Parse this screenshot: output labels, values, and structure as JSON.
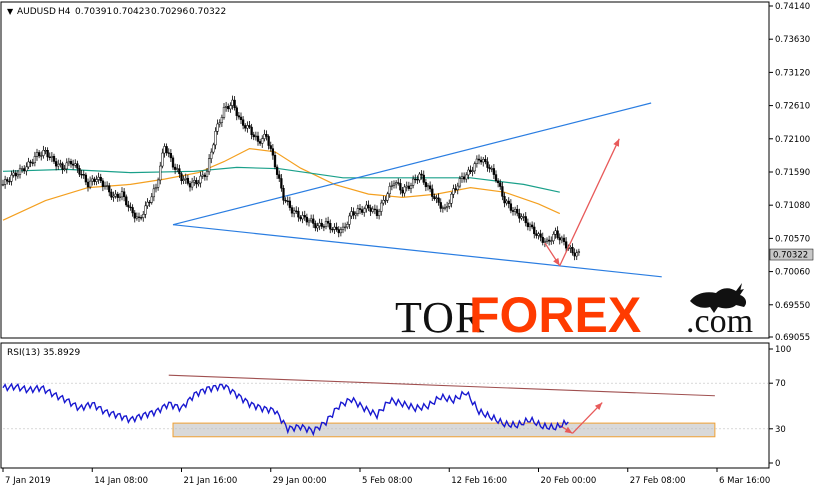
{
  "chart_data": [
    {
      "type": "candlestick",
      "symbol": "AUDUSD",
      "timeframe": "H4",
      "ohlc_readout": [
        "0.70391",
        "0.70423",
        "0.70296",
        "0.70322"
      ],
      "last_price_label": "0.70322",
      "y_ticks": [
        "0.74140",
        "0.73630",
        "0.73120",
        "0.72610",
        "0.72100",
        "0.71590",
        "0.71080",
        "0.70570",
        "0.70060",
        "0.69550",
        "0.69055"
      ],
      "ylim": [
        0.69055,
        0.7414
      ],
      "x_ticks": [
        "7 Jan 2019",
        "14 Jan 08:00",
        "21 Jan 16:00",
        "29 Jan 00:00",
        "5 Feb 08:00",
        "12 Feb 16:00",
        "20 Feb 00:00",
        "27 Feb 08:00",
        "6 Mar 16:00"
      ],
      "close_series": [
        [
          0,
          0.714
        ],
        [
          4,
          0.7152
        ],
        [
          8,
          0.716
        ],
        [
          12,
          0.717
        ],
        [
          16,
          0.7185
        ],
        [
          20,
          0.719
        ],
        [
          24,
          0.7175
        ],
        [
          28,
          0.7165
        ],
        [
          32,
          0.7175
        ],
        [
          36,
          0.716
        ],
        [
          40,
          0.714
        ],
        [
          44,
          0.715
        ],
        [
          48,
          0.7138
        ],
        [
          52,
          0.712
        ],
        [
          56,
          0.7125
        ],
        [
          60,
          0.71
        ],
        [
          64,
          0.7085
        ],
        [
          68,
          0.711
        ],
        [
          72,
          0.7135
        ],
        [
          76,
          0.72
        ],
        [
          80,
          0.717
        ],
        [
          84,
          0.715
        ],
        [
          88,
          0.714
        ],
        [
          92,
          0.7145
        ],
        [
          96,
          0.716
        ],
        [
          100,
          0.722
        ],
        [
          104,
          0.7255
        ],
        [
          108,
          0.7265
        ],
        [
          112,
          0.7235
        ],
        [
          116,
          0.7225
        ],
        [
          120,
          0.7205
        ],
        [
          124,
          0.7215
        ],
        [
          128,
          0.717
        ],
        [
          132,
          0.712
        ],
        [
          136,
          0.71
        ],
        [
          140,
          0.709
        ],
        [
          144,
          0.7085
        ],
        [
          148,
          0.7075
        ],
        [
          152,
          0.708
        ],
        [
          156,
          0.707
        ],
        [
          160,
          0.707
        ],
        [
          164,
          0.7095
        ],
        [
          168,
          0.71
        ],
        [
          172,
          0.7105
        ],
        [
          176,
          0.7095
        ],
        [
          180,
          0.712
        ],
        [
          184,
          0.7145
        ],
        [
          188,
          0.713
        ],
        [
          192,
          0.714
        ],
        [
          196,
          0.7155
        ],
        [
          200,
          0.7135
        ],
        [
          204,
          0.7115
        ],
        [
          208,
          0.71
        ],
        [
          212,
          0.713
        ],
        [
          216,
          0.715
        ],
        [
          220,
          0.716
        ],
        [
          224,
          0.718
        ],
        [
          228,
          0.717
        ],
        [
          232,
          0.715
        ],
        [
          236,
          0.7115
        ],
        [
          240,
          0.71
        ],
        [
          244,
          0.709
        ],
        [
          248,
          0.7075
        ],
        [
          252,
          0.706
        ],
        [
          256,
          0.705
        ],
        [
          260,
          0.7065
        ],
        [
          264,
          0.705
        ],
        [
          268,
          0.7035
        ],
        [
          272,
          0.7032
        ]
      ],
      "moving_averages": [
        {
          "color": "#f4a020",
          "values": [
            [
              0,
              0.7085
            ],
            [
              20,
              0.7115
            ],
            [
              40,
              0.7135
            ],
            [
              60,
              0.714
            ],
            [
              76,
              0.7148
            ],
            [
              92,
              0.7158
            ],
            [
              104,
              0.7175
            ],
            [
              116,
              0.7195
            ],
            [
              128,
              0.719
            ],
            [
              140,
              0.7165
            ],
            [
              156,
              0.714
            ],
            [
              172,
              0.7125
            ],
            [
              188,
              0.712
            ],
            [
              204,
              0.7125
            ],
            [
              220,
              0.7135
            ],
            [
              236,
              0.7128
            ],
            [
              252,
              0.711
            ],
            [
              262,
              0.7095
            ]
          ]
        },
        {
          "color": "#1aa08a",
          "values": [
            [
              0,
              0.716
            ],
            [
              30,
              0.7163
            ],
            [
              60,
              0.7158
            ],
            [
              90,
              0.716
            ],
            [
              110,
              0.7166
            ],
            [
              130,
              0.7164
            ],
            [
              160,
              0.715
            ],
            [
              190,
              0.715
            ],
            [
              220,
              0.715
            ],
            [
              245,
              0.714
            ],
            [
              262,
              0.7128
            ]
          ]
        }
      ],
      "trendlines": [
        {
          "color": "#2a7de1",
          "from": [
            80,
            0.7078
          ],
          "to": [
            305,
            0.7265
          ]
        },
        {
          "color": "#2a7de1",
          "from": [
            80,
            0.7078
          ],
          "to": [
            310,
            0.6998
          ]
        }
      ],
      "forecast_arrows": [
        {
          "color": "#e85a5a",
          "from": [
            255,
            0.705
          ],
          "to": [
            262,
            0.7015
          ]
        },
        {
          "color": "#e85a5a",
          "from": [
            262,
            0.7015
          ],
          "to": [
            290,
            0.721
          ]
        }
      ]
    },
    {
      "type": "line",
      "indicator": "RSI",
      "period": "13",
      "value_label": "35.8929",
      "y_ticks": [
        "100",
        "70",
        "30",
        "0"
      ],
      "ylim": [
        0,
        100
      ],
      "zone": [
        23,
        35
      ],
      "series": [
        [
          0,
          66
        ],
        [
          6,
          67
        ],
        [
          12,
          64
        ],
        [
          18,
          66
        ],
        [
          24,
          60
        ],
        [
          30,
          55
        ],
        [
          36,
          48
        ],
        [
          42,
          52
        ],
        [
          48,
          45
        ],
        [
          54,
          42
        ],
        [
          60,
          38
        ],
        [
          66,
          42
        ],
        [
          72,
          45
        ],
        [
          78,
          52
        ],
        [
          84,
          48
        ],
        [
          90,
          60
        ],
        [
          96,
          65
        ],
        [
          104,
          68
        ],
        [
          110,
          60
        ],
        [
          116,
          52
        ],
        [
          122,
          48
        ],
        [
          128,
          46
        ],
        [
          134,
          30
        ],
        [
          140,
          32
        ],
        [
          146,
          28
        ],
        [
          152,
          36
        ],
        [
          158,
          50
        ],
        [
          164,
          56
        ],
        [
          170,
          48
        ],
        [
          176,
          42
        ],
        [
          182,
          55
        ],
        [
          188,
          52
        ],
        [
          194,
          48
        ],
        [
          200,
          50
        ],
        [
          206,
          58
        ],
        [
          212,
          55
        ],
        [
          218,
          62
        ],
        [
          224,
          45
        ],
        [
          230,
          40
        ],
        [
          236,
          34
        ],
        [
          242,
          33
        ],
        [
          248,
          38
        ],
        [
          254,
          32
        ],
        [
          260,
          31
        ],
        [
          266,
          36
        ]
      ],
      "trendline": {
        "color": "#a05050",
        "from": [
          78,
          77
        ],
        "to": [
          335,
          59
        ]
      },
      "forecast_arrows": [
        {
          "color": "#e85a5a",
          "from": [
            262,
            33
          ],
          "to": [
            268,
            26
          ]
        },
        {
          "color": "#e85a5a",
          "from": [
            268,
            26
          ],
          "to": [
            282,
            53
          ]
        }
      ]
    }
  ],
  "watermark": {
    "part1": "TOR",
    "part2": "FOREX",
    "part3": ".com"
  }
}
